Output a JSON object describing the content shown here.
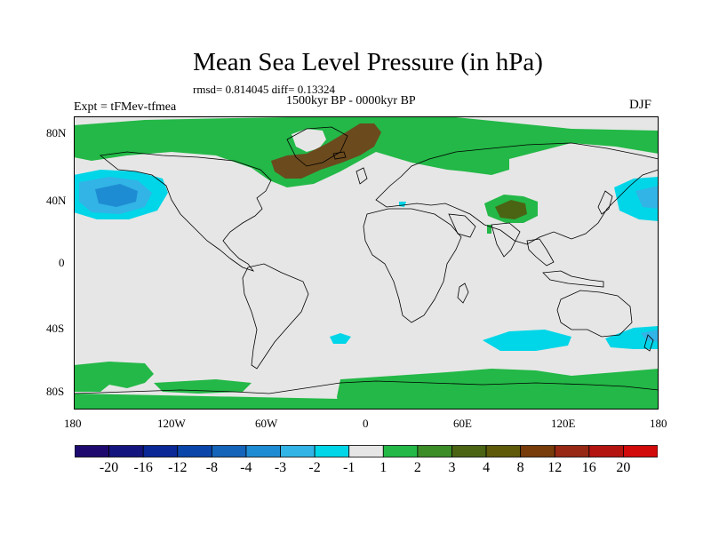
{
  "title": "Mean Sea Level Pressure (in hPa)",
  "stats": "rmsd= 0.814045 diff= 0.13324",
  "period": "1500kyr BP - 0000kyr BP",
  "experiment": "Expt = tFMev-tfmea",
  "season": "DJF",
  "axes": {
    "lat_ticks": [
      "80N",
      "40N",
      "0",
      "40S",
      "80S"
    ],
    "lon_ticks": [
      "180",
      "120W",
      "60W",
      "0",
      "60E",
      "120E",
      "180"
    ]
  },
  "colorbar": {
    "labels": [
      "-20",
      "-16",
      "-12",
      "-8",
      "-4",
      "-3",
      "-2",
      "-1",
      "1",
      "2",
      "3",
      "4",
      "8",
      "12",
      "16",
      "20"
    ],
    "colors": [
      "#1e0a6e",
      "#14147f",
      "#0a2896",
      "#0a46aa",
      "#1464b9",
      "#1e8cd2",
      "#32b4e6",
      "#00d6e8",
      "#e6e6e6",
      "#23b847",
      "#3c8c28",
      "#4a6414",
      "#5f5a0a",
      "#783c0a",
      "#962814",
      "#b4140f",
      "#d20a0a"
    ]
  },
  "map_colors": {
    "ocean": "#e6e6e6",
    "coast": "#000000",
    "pos1": "#23b847",
    "pos3": "#4a6414",
    "pos4": "#6b4a1e",
    "neg2": "#00d6e8",
    "neg3": "#32b4e6",
    "neg4": "#1e8cd2"
  }
}
